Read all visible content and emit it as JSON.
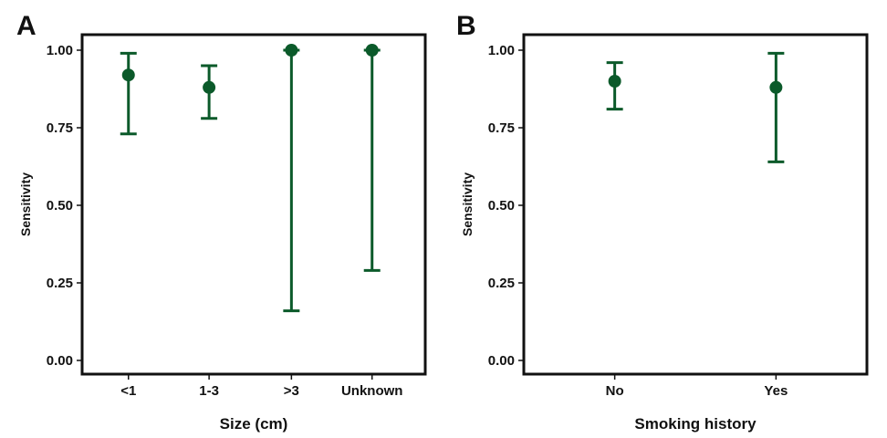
{
  "colors": {
    "marker": "#0b5a2a",
    "axis": "#111111"
  },
  "chart_data": [
    {
      "panel": "A",
      "type": "scatter",
      "subtype": "point-with-error-bars",
      "xlabel": "Size (cm)",
      "ylabel": "Sensitivity",
      "categories": [
        "<1",
        "1-3",
        ">3",
        "Unknown"
      ],
      "values": [
        0.92,
        0.88,
        1.0,
        1.0
      ],
      "lower": [
        0.73,
        0.78,
        0.16,
        0.29
      ],
      "upper": [
        0.99,
        0.95,
        1.0,
        1.0
      ],
      "ylim": [
        0,
        1
      ],
      "yticks": [
        "0.00",
        "0.25",
        "0.50",
        "0.75",
        "1.00"
      ],
      "ytick_values": [
        0,
        0.25,
        0.5,
        0.75,
        1.0
      ]
    },
    {
      "panel": "B",
      "type": "scatter",
      "subtype": "point-with-error-bars",
      "xlabel": "Smoking history",
      "ylabel": "Sensitivity",
      "categories": [
        "No",
        "Yes"
      ],
      "values": [
        0.9,
        0.88
      ],
      "lower": [
        0.81,
        0.64
      ],
      "upper": [
        0.96,
        0.99
      ],
      "ylim": [
        0,
        1
      ],
      "yticks": [
        "0.00",
        "0.25",
        "0.50",
        "0.75",
        "1.00"
      ],
      "ytick_values": [
        0,
        0.25,
        0.5,
        0.75,
        1.0
      ]
    }
  ]
}
